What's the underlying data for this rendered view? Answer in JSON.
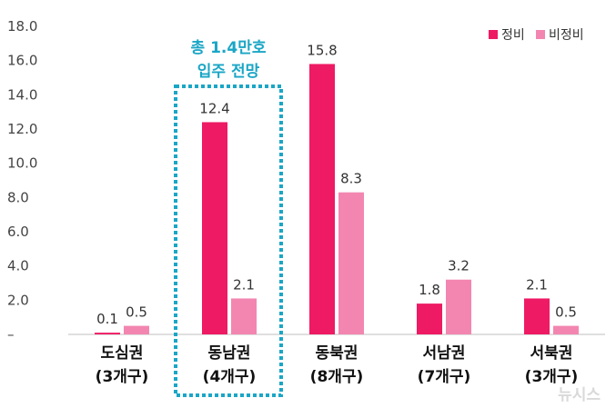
{
  "chart_data": {
    "type": "bar",
    "categories": [
      {
        "line1": "도심권",
        "line2": "(3개구)"
      },
      {
        "line1": "동남권",
        "line2": "(4개구)"
      },
      {
        "line1": "동북권",
        "line2": "(8개구)"
      },
      {
        "line1": "서남권",
        "line2": "(7개구)"
      },
      {
        "line1": "서북권",
        "line2": "(3개구)"
      }
    ],
    "series": [
      {
        "name": "정비",
        "color": "#ee1a64",
        "values": [
          0.1,
          12.4,
          15.8,
          1.8,
          2.1
        ]
      },
      {
        "name": "비정비",
        "color": "#f386b0",
        "values": [
          0.5,
          2.1,
          8.3,
          3.2,
          0.5
        ]
      }
    ],
    "value_labels": [
      [
        "0.1",
        "12.4",
        "15.8",
        "1.8",
        "2.1"
      ],
      [
        "0.5",
        "2.1",
        "8.3",
        "3.2",
        "0.5"
      ]
    ],
    "yticks": [
      "–",
      "2.0",
      "4.0",
      "6.0",
      "8.0",
      "10.0",
      "12.0",
      "14.0",
      "16.0",
      "18.0"
    ],
    "ylim": [
      0,
      18
    ],
    "legend_position": "top-right",
    "grid": false,
    "annotation": {
      "line1": "총 1.4만호",
      "line2": "입주 전망",
      "category_index": 1,
      "color": "#1aa6c6"
    }
  },
  "watermark": "뉴시스"
}
